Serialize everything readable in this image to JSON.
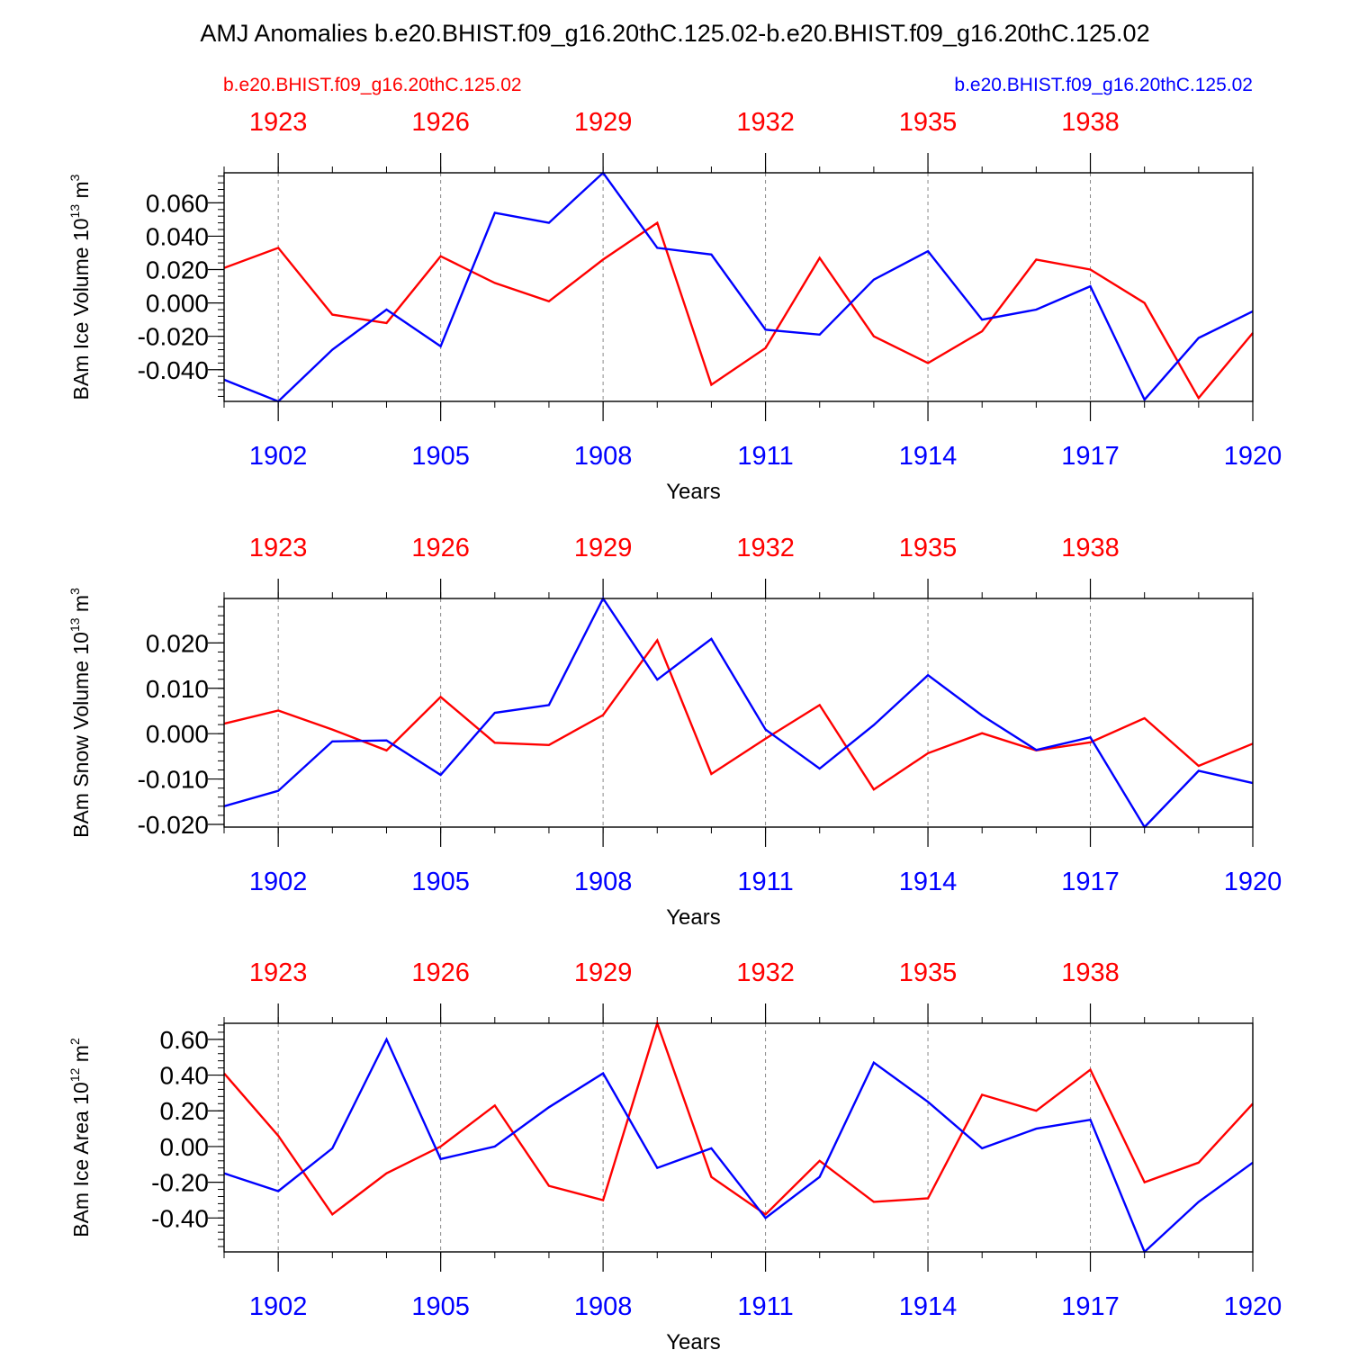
{
  "title": "AMJ Anomalies b.e20.BHIST.f09_g16.20thC.125.02-b.e20.BHIST.f09_g16.20thC.125.02",
  "legend": {
    "left": "b.e20.BHIST.f09_g16.20thC.125.02",
    "right": "b.e20.BHIST.f09_g16.20thC.125.02",
    "left_color": "#ff0000",
    "right_color": "#0000ff"
  },
  "colors": {
    "red": "#ff0000",
    "blue": "#0000ff",
    "axis": "#000000",
    "grid": "#888888"
  },
  "chart_data": [
    {
      "type": "line",
      "ylabel": "BAm Ice Volume 10",
      "ylabel_exp": "13",
      "ylabel_unit": " m",
      "ylabel_unit_exp": "3",
      "xlabel": "Years",
      "ylim": [
        -0.059,
        0.078
      ],
      "yticks": [
        -0.04,
        -0.02,
        0.0,
        0.02,
        0.04,
        0.06
      ],
      "ytick_labels": [
        "-0.040",
        "-0.020",
        "0.000",
        "0.020",
        "0.040",
        "0.060"
      ],
      "minor_step": 0.004,
      "x_bottom": [
        1901,
        1902,
        1903,
        1904,
        1905,
        1906,
        1907,
        1908,
        1909,
        1910,
        1911,
        1912,
        1913,
        1914,
        1915,
        1916,
        1917,
        1918,
        1919,
        1920
      ],
      "x_top": [
        1922,
        1923,
        1924,
        1925,
        1926,
        1927,
        1928,
        1929,
        1930,
        1931,
        1932,
        1933,
        1934,
        1935,
        1936,
        1937,
        1938,
        1939,
        1940,
        1941
      ],
      "xticks_bottom": [
        "1902",
        "1905",
        "1908",
        "1911",
        "1914",
        "1917",
        "1920"
      ],
      "xticks_top": [
        "1923",
        "1926",
        "1929",
        "1932",
        "1935",
        "1938"
      ],
      "series": [
        {
          "name": "b.e20.BHIST.f09_g16.20thC.125.02 (top axis)",
          "color": "#ff0000",
          "values": [
            0.021,
            0.033,
            -0.007,
            -0.012,
            0.028,
            0.012,
            0.001,
            0.026,
            0.048,
            -0.049,
            -0.027,
            0.027,
            -0.02,
            -0.036,
            -0.017,
            0.026,
            0.02,
            0.0,
            -0.057,
            -0.018
          ]
        },
        {
          "name": "b.e20.BHIST.f09_g16.20thC.125.02 (bottom axis)",
          "color": "#0000ff",
          "values": [
            -0.046,
            -0.059,
            -0.028,
            -0.004,
            -0.026,
            0.054,
            0.048,
            0.078,
            0.033,
            0.029,
            -0.016,
            -0.019,
            0.014,
            0.031,
            -0.01,
            -0.004,
            0.01,
            -0.058,
            -0.021,
            -0.005
          ]
        }
      ]
    },
    {
      "type": "line",
      "ylabel": "BAm Snow Volume 10",
      "ylabel_exp": "13",
      "ylabel_unit": " m",
      "ylabel_unit_exp": "3",
      "xlabel": "Years",
      "ylim": [
        -0.0206,
        0.0298
      ],
      "yticks": [
        -0.02,
        -0.01,
        0.0,
        0.01,
        0.02
      ],
      "ytick_labels": [
        "-0.020",
        "-0.010",
        "0.000",
        "0.010",
        "0.020"
      ],
      "minor_step": 0.002,
      "x_bottom": [
        1901,
        1902,
        1903,
        1904,
        1905,
        1906,
        1907,
        1908,
        1909,
        1910,
        1911,
        1912,
        1913,
        1914,
        1915,
        1916,
        1917,
        1918,
        1919,
        1920
      ],
      "x_top": [
        1922,
        1923,
        1924,
        1925,
        1926,
        1927,
        1928,
        1929,
        1930,
        1931,
        1932,
        1933,
        1934,
        1935,
        1936,
        1937,
        1938,
        1939,
        1940,
        1941
      ],
      "xticks_bottom": [
        "1902",
        "1905",
        "1908",
        "1911",
        "1914",
        "1917",
        "1920"
      ],
      "xticks_top": [
        "1923",
        "1926",
        "1929",
        "1932",
        "1935",
        "1938"
      ],
      "series": [
        {
          "name": "b.e20.BHIST.f09_g16.20thC.125.02 (top axis)",
          "color": "#ff0000",
          "values": [
            0.0022,
            0.0051,
            0.0009,
            -0.0037,
            0.0081,
            -0.002,
            -0.0025,
            0.0041,
            0.0206,
            -0.0089,
            -0.0011,
            0.0063,
            -0.0123,
            -0.0043,
            0.0001,
            -0.0037,
            -0.0019,
            0.0034,
            -0.0071,
            -0.0022
          ]
        },
        {
          "name": "b.e20.BHIST.f09_g16.20thC.125.02 (bottom axis)",
          "color": "#0000ff",
          "values": [
            -0.016,
            -0.0126,
            -0.0017,
            -0.0015,
            -0.0091,
            0.0046,
            0.0063,
            0.0298,
            0.0119,
            0.0209,
            0.0009,
            -0.0077,
            0.0019,
            0.0129,
            0.004,
            -0.0036,
            -0.0008,
            -0.0206,
            -0.0082,
            -0.0109
          ]
        }
      ]
    },
    {
      "type": "line",
      "ylabel": "BAm Ice Area 10",
      "ylabel_exp": "12",
      "ylabel_unit": " m",
      "ylabel_unit_exp": "2",
      "xlabel": "Years",
      "ylim": [
        -0.59,
        0.69
      ],
      "yticks": [
        -0.4,
        -0.2,
        0.0,
        0.2,
        0.4,
        0.6
      ],
      "ytick_labels": [
        "-0.40",
        "-0.20",
        "0.00",
        "0.20",
        "0.40",
        "0.60"
      ],
      "minor_step": 0.04,
      "x_bottom": [
        1901,
        1902,
        1903,
        1904,
        1905,
        1906,
        1907,
        1908,
        1909,
        1910,
        1911,
        1912,
        1913,
        1914,
        1915,
        1916,
        1917,
        1918,
        1919,
        1920
      ],
      "x_top": [
        1922,
        1923,
        1924,
        1925,
        1926,
        1927,
        1928,
        1929,
        1930,
        1931,
        1932,
        1933,
        1934,
        1935,
        1936,
        1937,
        1938,
        1939,
        1940,
        1941
      ],
      "xticks_bottom": [
        "1902",
        "1905",
        "1908",
        "1911",
        "1914",
        "1917",
        "1920"
      ],
      "xticks_top": [
        "1923",
        "1926",
        "1929",
        "1932",
        "1935",
        "1938"
      ],
      "series": [
        {
          "name": "b.e20.BHIST.f09_g16.20thC.125.02 (top axis)",
          "color": "#ff0000",
          "values": [
            0.41,
            0.06,
            -0.38,
            -0.15,
            0.0,
            0.23,
            -0.22,
            -0.3,
            0.69,
            -0.17,
            -0.38,
            -0.08,
            -0.31,
            -0.29,
            0.29,
            0.2,
            0.43,
            -0.2,
            -0.09,
            0.24
          ]
        },
        {
          "name": "b.e20.BHIST.f09_g16.20thC.125.02 (bottom axis)",
          "color": "#0000ff",
          "values": [
            -0.15,
            -0.25,
            -0.01,
            0.6,
            -0.07,
            0.0,
            0.22,
            0.41,
            -0.12,
            -0.01,
            -0.4,
            -0.17,
            0.47,
            0.25,
            -0.01,
            0.1,
            0.15,
            -0.59,
            -0.31,
            -0.09
          ]
        }
      ]
    }
  ]
}
